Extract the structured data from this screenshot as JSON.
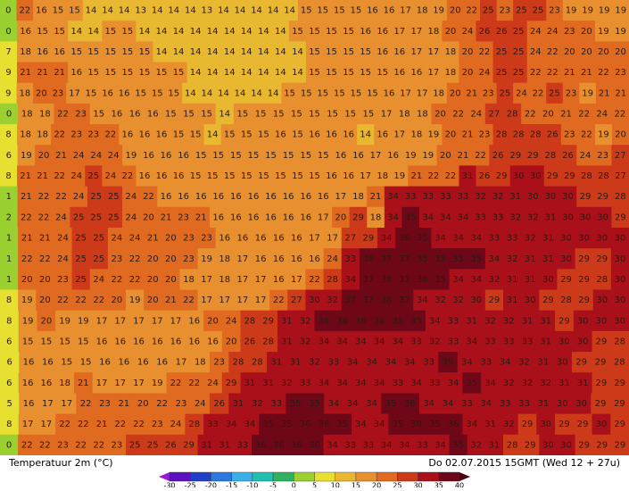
{
  "map": {
    "rows": [
      [
        0,
        22,
        16,
        15,
        15,
        14,
        14,
        14,
        13,
        14,
        14,
        14,
        13,
        14,
        14,
        14,
        14,
        14,
        15,
        15,
        15,
        15,
        16,
        16,
        17,
        18,
        19,
        20,
        22,
        25,
        23,
        25,
        25,
        23,
        19,
        19,
        19,
        19
      ],
      [
        0,
        16,
        15,
        15,
        14,
        14,
        15,
        15,
        14,
        14,
        14,
        14,
        14,
        14,
        14,
        14,
        14,
        15,
        15,
        15,
        15,
        16,
        16,
        17,
        17,
        18,
        20,
        24,
        26,
        26,
        25,
        24,
        24,
        23,
        20,
        19,
        19
      ],
      [
        7,
        18,
        16,
        16,
        15,
        15,
        15,
        15,
        15,
        14,
        14,
        14,
        14,
        14,
        14,
        14,
        14,
        14,
        15,
        15,
        15,
        15,
        16,
        16,
        17,
        17,
        18,
        20,
        22,
        25,
        25,
        24,
        22,
        20,
        20,
        20,
        20
      ],
      [
        9,
        21,
        21,
        21,
        16,
        15,
        15,
        15,
        15,
        15,
        15,
        14,
        14,
        14,
        14,
        14,
        14,
        14,
        15,
        15,
        15,
        15,
        15,
        16,
        16,
        17,
        18,
        20,
        24,
        25,
        25,
        22,
        22,
        21,
        21,
        22,
        23
      ],
      [
        9,
        18,
        20,
        23,
        17,
        15,
        16,
        16,
        15,
        15,
        15,
        14,
        14,
        14,
        14,
        14,
        14,
        15,
        15,
        15,
        15,
        15,
        15,
        16,
        17,
        17,
        18,
        20,
        21,
        23,
        25,
        24,
        22,
        25,
        23,
        19,
        21,
        21
      ],
      [
        0,
        18,
        18,
        22,
        23,
        15,
        16,
        16,
        16,
        15,
        15,
        15,
        14,
        15,
        15,
        15,
        15,
        15,
        15,
        15,
        15,
        17,
        18,
        18,
        20,
        22,
        24,
        27,
        28,
        22,
        20,
        21,
        22,
        24,
        22
      ],
      [
        8,
        18,
        18,
        22,
        23,
        23,
        22,
        16,
        16,
        16,
        15,
        15,
        14,
        15,
        15,
        15,
        16,
        15,
        16,
        16,
        16,
        14,
        16,
        17,
        18,
        19,
        20,
        21,
        23,
        28,
        28,
        28,
        26,
        23,
        22,
        19,
        20
      ],
      [
        6,
        19,
        20,
        21,
        24,
        24,
        24,
        19,
        16,
        16,
        16,
        15,
        15,
        15,
        15,
        15,
        15,
        15,
        15,
        16,
        16,
        17,
        16,
        19,
        19,
        20,
        21,
        22,
        26,
        29,
        29,
        28,
        26,
        24,
        23,
        27
      ],
      [
        8,
        21,
        21,
        22,
        24,
        25,
        24,
        22,
        16,
        16,
        16,
        15,
        15,
        15,
        15,
        15,
        15,
        15,
        15,
        16,
        16,
        17,
        18,
        19,
        21,
        22,
        22,
        31,
        26,
        29,
        30,
        30,
        29,
        29,
        28,
        28,
        27
      ],
      [
        1,
        21,
        22,
        22,
        24,
        25,
        25,
        24,
        22,
        16,
        16,
        16,
        16,
        16,
        16,
        16,
        16,
        16,
        16,
        17,
        18,
        21,
        34,
        33,
        33,
        33,
        33,
        32,
        32,
        31,
        30,
        30,
        30,
        29,
        29,
        28
      ],
      [
        2,
        22,
        22,
        24,
        25,
        25,
        25,
        24,
        20,
        21,
        23,
        21,
        16,
        16,
        16,
        16,
        16,
        16,
        17,
        20,
        29,
        18,
        34,
        35,
        34,
        34,
        34,
        33,
        33,
        32,
        32,
        31,
        30,
        30,
        30,
        29
      ],
      [
        1,
        21,
        21,
        24,
        25,
        25,
        24,
        24,
        21,
        20,
        23,
        23,
        16,
        16,
        16,
        16,
        16,
        17,
        17,
        27,
        29,
        34,
        36,
        35,
        34,
        34,
        34,
        33,
        33,
        32,
        31,
        30,
        30,
        30,
        30
      ],
      [
        1,
        22,
        22,
        24,
        25,
        25,
        23,
        22,
        20,
        20,
        23,
        19,
        18,
        17,
        16,
        16,
        16,
        16,
        24,
        33,
        36,
        37,
        37,
        35,
        35,
        35,
        35,
        34,
        32,
        31,
        31,
        30,
        29,
        29,
        30
      ],
      [
        1,
        20,
        20,
        23,
        25,
        24,
        22,
        22,
        20,
        20,
        18,
        17,
        18,
        17,
        17,
        16,
        17,
        22,
        28,
        34,
        37,
        38,
        37,
        36,
        35,
        34,
        34,
        32,
        31,
        31,
        30,
        29,
        29,
        28,
        30
      ],
      [
        8,
        19,
        20,
        22,
        22,
        22,
        20,
        19,
        20,
        21,
        22,
        17,
        17,
        17,
        17,
        22,
        27,
        30,
        32,
        37,
        37,
        38,
        37,
        34,
        32,
        32,
        30,
        29,
        31,
        30,
        29,
        28,
        29,
        30,
        30
      ],
      [
        8,
        19,
        20,
        19,
        19,
        17,
        17,
        17,
        17,
        17,
        16,
        20,
        24,
        28,
        29,
        31,
        32,
        36,
        36,
        36,
        36,
        35,
        35,
        34,
        33,
        31,
        32,
        32,
        31,
        31,
        29,
        30,
        30,
        30
      ],
      [
        6,
        15,
        15,
        15,
        15,
        16,
        16,
        16,
        16,
        16,
        16,
        16,
        20,
        26,
        28,
        31,
        32,
        34,
        34,
        34,
        34,
        34,
        33,
        32,
        33,
        34,
        33,
        33,
        33,
        31,
        30,
        30,
        29,
        28
      ],
      [
        6,
        16,
        16,
        15,
        15,
        16,
        16,
        16,
        16,
        17,
        18,
        23,
        28,
        28,
        31,
        31,
        32,
        33,
        34,
        34,
        34,
        34,
        33,
        35,
        34,
        33,
        34,
        32,
        31,
        30,
        29,
        29,
        28
      ],
      [
        6,
        16,
        16,
        18,
        21,
        17,
        17,
        17,
        19,
        22,
        22,
        24,
        29,
        31,
        31,
        32,
        33,
        34,
        34,
        34,
        34,
        33,
        34,
        33,
        34,
        35,
        34,
        32,
        32,
        32,
        31,
        31,
        29,
        29
      ],
      [
        5,
        16,
        17,
        17,
        22,
        23,
        21,
        20,
        22,
        23,
        24,
        26,
        31,
        32,
        33,
        35,
        35,
        34,
        34,
        34,
        35,
        36,
        34,
        34,
        33,
        34,
        33,
        33,
        31,
        30,
        30,
        29,
        29
      ],
      [
        8,
        17,
        17,
        22,
        22,
        21,
        22,
        22,
        23,
        24,
        28,
        33,
        34,
        34,
        35,
        35,
        36,
        36,
        35,
        34,
        34,
        35,
        38,
        35,
        36,
        34,
        31,
        32,
        29,
        30,
        29,
        29,
        30,
        29
      ],
      [
        0,
        22,
        22,
        23,
        22,
        22,
        23,
        25,
        25,
        26,
        29,
        31,
        31,
        33,
        36,
        36,
        36,
        36,
        34,
        33,
        33,
        34,
        34,
        33,
        34,
        35,
        32,
        31,
        28,
        29,
        30,
        30,
        29,
        29,
        29
      ]
    ]
  },
  "footer": {
    "left": "Temperatuur 2m (°C)",
    "right": "Do 02.07.2015 15GMT (Wed 12 + 27u)"
  },
  "scale": {
    "ticks": [
      -30,
      -25,
      -20,
      -15,
      -10,
      -5,
      0,
      5,
      10,
      15,
      20,
      25,
      30,
      35,
      40
    ],
    "colors": [
      "#9a1ad8",
      "#5a12c0",
      "#2040c8",
      "#2a78e0",
      "#3ab0e8",
      "#20c0b0",
      "#30b060",
      "#9ad030",
      "#e8e030",
      "#e8b830",
      "#e89030",
      "#e06a20",
      "#cc3a1a",
      "#aa101a",
      "#6e0818",
      "#4a0410"
    ]
  }
}
